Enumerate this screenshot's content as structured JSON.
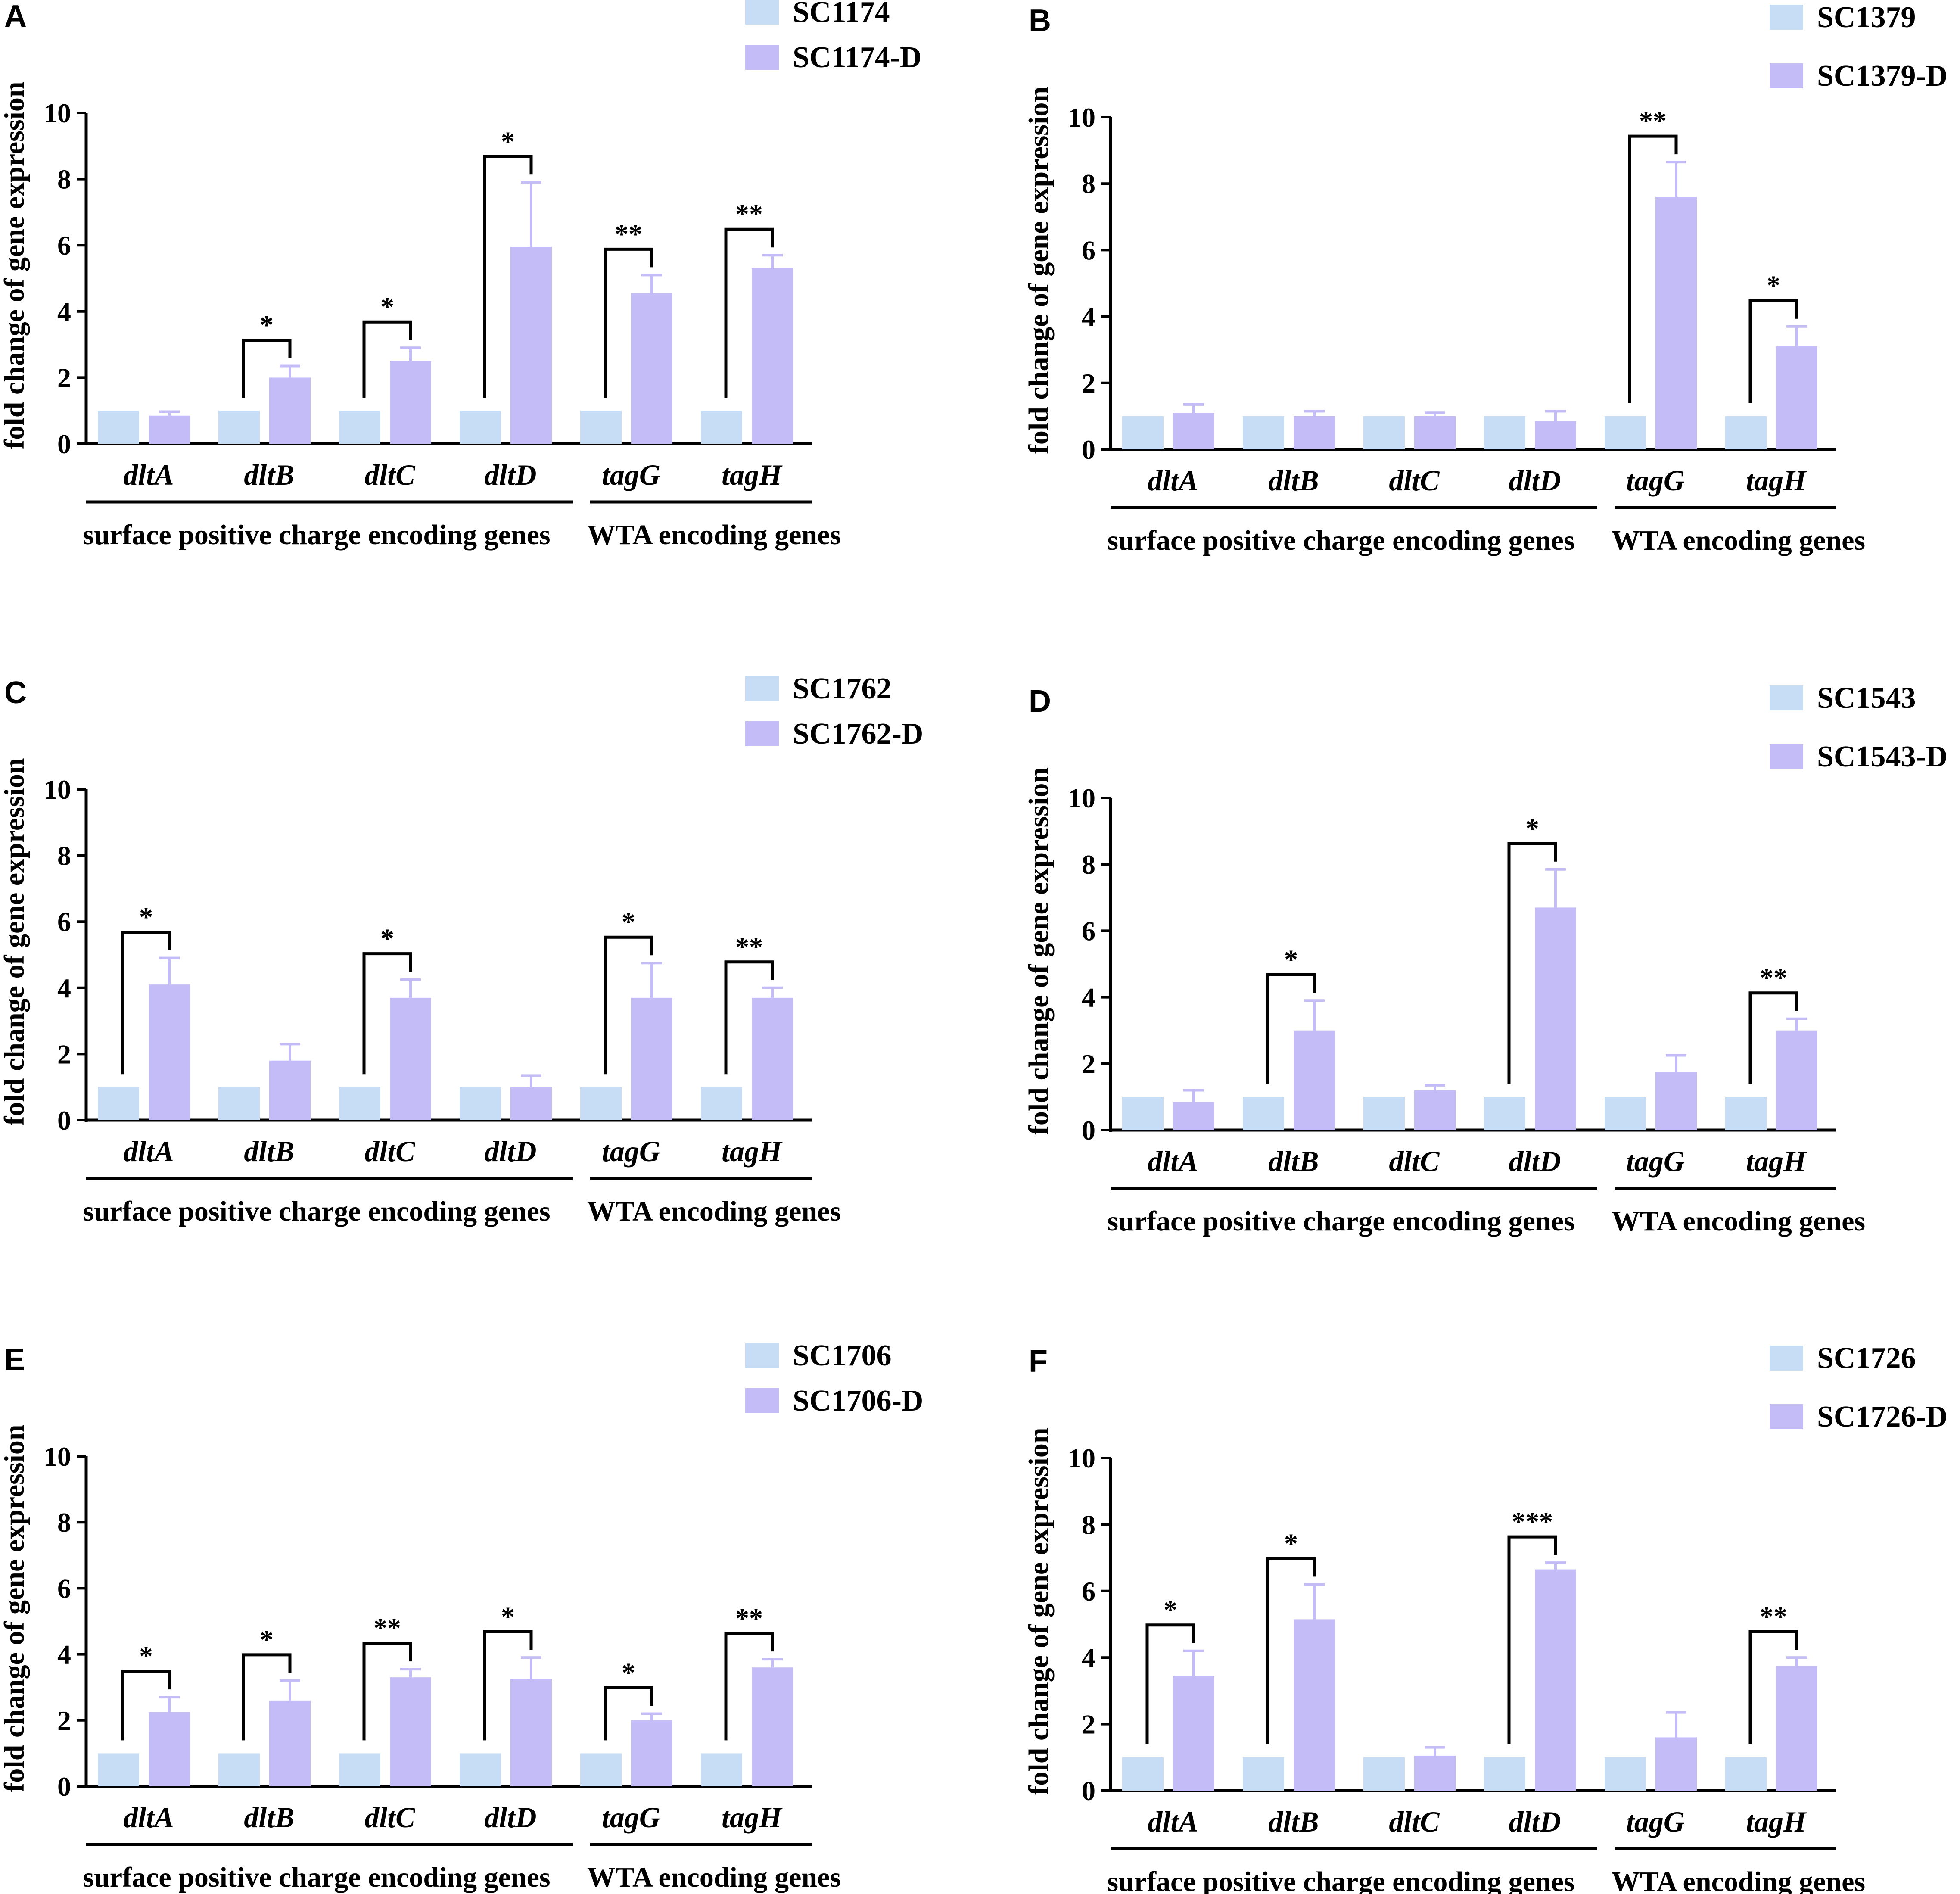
{
  "colors": {
    "control": "#c6ddf5",
    "treated": "#c3bcf7",
    "axis": "#000000"
  },
  "chart_data": [
    {
      "panel": "A",
      "type": "bar",
      "ylabel": "fold change of gene expression",
      "ylim": [
        0,
        10
      ],
      "yticks": [
        "0",
        "2",
        "4",
        "6",
        "8",
        "10"
      ],
      "categories": [
        "dltA",
        "dltB",
        "dltC",
        "dltD",
        "tagG",
        "tagH"
      ],
      "group_labels": [
        "surface positive charge encoding genes",
        "WTA encoding genes"
      ],
      "series": [
        {
          "name": "SC1174",
          "values": [
            1,
            1,
            1,
            1,
            1,
            1
          ],
          "errors": [
            0,
            0,
            0,
            0,
            0,
            0
          ]
        },
        {
          "name": "SC1174-D",
          "values": [
            0.85,
            2.0,
            2.5,
            5.95,
            4.55,
            5.3
          ],
          "errors": [
            0.12,
            0.35,
            0.4,
            1.95,
            0.55,
            0.4
          ]
        }
      ],
      "significance": [
        "",
        "*",
        "*",
        "*",
        "**",
        "**"
      ]
    },
    {
      "panel": "B",
      "type": "bar",
      "ylabel": "fold change of gene expression",
      "ylim": [
        0,
        10
      ],
      "yticks": [
        "0",
        "2",
        "4",
        "6",
        "8",
        "10"
      ],
      "categories": [
        "dltA",
        "dltB",
        "dltC",
        "dltD",
        "tagG",
        "tagH"
      ],
      "group_labels": [
        "surface positive charge encoding genes",
        "WTA encoding genes"
      ],
      "series": [
        {
          "name": "SC1379",
          "values": [
            1,
            1,
            1,
            1,
            1,
            1
          ],
          "errors": [
            0,
            0,
            0,
            0,
            0,
            0
          ]
        },
        {
          "name": "SC1379-D",
          "values": [
            1.1,
            1.0,
            1.0,
            0.85,
            7.6,
            3.1
          ],
          "errors": [
            0.25,
            0.15,
            0.1,
            0.3,
            1.05,
            0.6
          ]
        }
      ],
      "significance": [
        "",
        "",
        "",
        "",
        "**",
        "*"
      ]
    },
    {
      "panel": "C",
      "type": "bar",
      "ylabel": "fold change of gene expression",
      "ylim": [
        0,
        10
      ],
      "yticks": [
        "0",
        "2",
        "4",
        "6",
        "8",
        "10"
      ],
      "categories": [
        "dltA",
        "dltB",
        "dltC",
        "dltD",
        "tagG",
        "tagH"
      ],
      "group_labels": [
        "surface positive charge encoding genes",
        "WTA encoding genes"
      ],
      "series": [
        {
          "name": "SC1762",
          "values": [
            1,
            1,
            1,
            1,
            1,
            1
          ],
          "errors": [
            0,
            0,
            0,
            0,
            0,
            0
          ]
        },
        {
          "name": "SC1762-D",
          "values": [
            4.1,
            1.8,
            3.7,
            1.0,
            3.7,
            3.7
          ],
          "errors": [
            0.8,
            0.5,
            0.55,
            0.35,
            1.05,
            0.3
          ]
        }
      ],
      "significance": [
        "*",
        "",
        "*",
        "",
        "*",
        "**"
      ]
    },
    {
      "panel": "D",
      "type": "bar",
      "ylabel": "fold change of gene expression",
      "ylim": [
        0,
        10
      ],
      "yticks": [
        "0",
        "2",
        "4",
        "6",
        "8",
        "10"
      ],
      "categories": [
        "dltA",
        "dltB",
        "dltC",
        "dltD",
        "tagG",
        "tagH"
      ],
      "group_labels": [
        "surface positive charge encoding genes",
        "WTA encoding genes"
      ],
      "series": [
        {
          "name": "SC1543",
          "values": [
            1,
            1,
            1,
            1,
            1,
            1
          ],
          "errors": [
            0,
            0,
            0,
            0,
            0,
            0
          ]
        },
        {
          "name": "SC1543-D",
          "values": [
            0.85,
            3.0,
            1.2,
            6.7,
            1.75,
            3.0
          ],
          "errors": [
            0.35,
            0.9,
            0.15,
            1.15,
            0.5,
            0.35
          ]
        }
      ],
      "significance": [
        "",
        "*",
        "",
        "*",
        "",
        "**"
      ]
    },
    {
      "panel": "E",
      "type": "bar",
      "ylabel": "fold change of gene expression",
      "ylim": [
        0,
        10
      ],
      "yticks": [
        "0",
        "2",
        "4",
        "6",
        "8",
        "10"
      ],
      "categories": [
        "dltA",
        "dltB",
        "dltC",
        "dltD",
        "tagG",
        "tagH"
      ],
      "group_labels": [
        "surface positive charge encoding genes",
        "WTA encoding genes"
      ],
      "series": [
        {
          "name": "SC1706",
          "values": [
            1,
            1,
            1,
            1,
            1,
            1
          ],
          "errors": [
            0,
            0,
            0,
            0,
            0,
            0
          ]
        },
        {
          "name": "SC1706-D",
          "values": [
            2.25,
            2.6,
            3.3,
            3.25,
            2.0,
            3.6
          ],
          "errors": [
            0.45,
            0.6,
            0.25,
            0.65,
            0.2,
            0.25
          ]
        }
      ],
      "significance": [
        "*",
        "*",
        "**",
        "*",
        "*",
        "**"
      ]
    },
    {
      "panel": "F",
      "type": "bar",
      "ylabel": "fold change of gene expression",
      "ylim": [
        0,
        10
      ],
      "yticks": [
        "0",
        "2",
        "4",
        "6",
        "8",
        "10"
      ],
      "categories": [
        "dltA",
        "dltB",
        "dltC",
        "dltD",
        "tagG",
        "tagH"
      ],
      "group_labels": [
        "surface positive charge encoding genes",
        "WTA encoding genes"
      ],
      "series": [
        {
          "name": "SC1726",
          "values": [
            1,
            1,
            1,
            1,
            1,
            1
          ],
          "errors": [
            0,
            0,
            0,
            0,
            0,
            0
          ]
        },
        {
          "name": "SC1726-D",
          "values": [
            3.45,
            5.15,
            1.05,
            6.65,
            1.6,
            3.75
          ],
          "errors": [
            0.75,
            1.05,
            0.25,
            0.2,
            0.75,
            0.25
          ]
        }
      ],
      "significance": [
        "*",
        "*",
        "",
        "***",
        "",
        "**"
      ]
    }
  ]
}
